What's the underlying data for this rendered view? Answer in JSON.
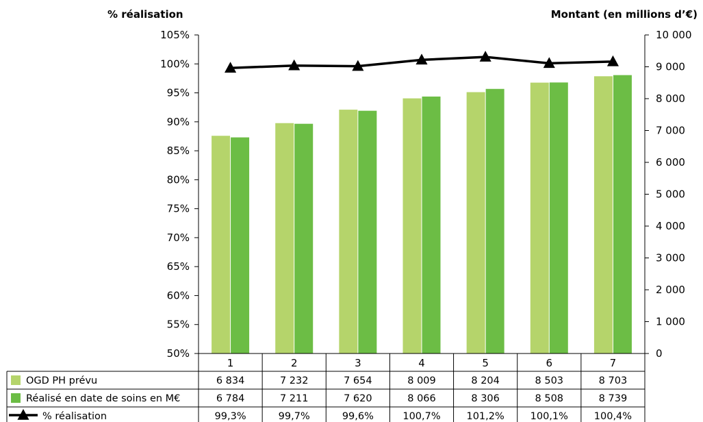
{
  "colors": {
    "ogd": "#b5d46b",
    "realise": "#6cbd45",
    "line": "#000000",
    "grid": "#000000"
  },
  "chart_data": {
    "type": "bar",
    "title": "",
    "ylabel_left": "% réalisation",
    "ylabel_right": "Montant (en millions d’€)",
    "left_axis": {
      "min": 0.5,
      "max": 1.05,
      "step": 0.05,
      "tick_labels": [
        "50%",
        "55%",
        "60%",
        "65%",
        "70%",
        "75%",
        "80%",
        "85%",
        "90%",
        "95%",
        "100%",
        "105%"
      ]
    },
    "right_axis": {
      "min": 0,
      "max": 10000,
      "step": 1000,
      "tick_labels": [
        "0",
        "1 000",
        "2 000",
        "3 000",
        "4 000",
        "5 000",
        "6 000",
        "7 000",
        "8 000",
        "9 000",
        "10 000"
      ]
    },
    "categories": [
      "1",
      "2",
      "3",
      "4",
      "5",
      "6",
      "7"
    ],
    "series": [
      {
        "name": "OGD PH prévu",
        "type": "bar",
        "axis": "right",
        "color_key": "ogd",
        "values": [
          6834,
          7232,
          7654,
          8009,
          8204,
          8503,
          8703
        ],
        "labels": [
          "6 834",
          "7 232",
          "7 654",
          "8 009",
          "8 204",
          "8 503",
          "8 703"
        ]
      },
      {
        "name": "Réalisé en date de soins en M€",
        "type": "bar",
        "axis": "right",
        "color_key": "realise",
        "values": [
          6784,
          7211,
          7620,
          8066,
          8306,
          8508,
          8739
        ],
        "labels": [
          "6 784",
          "7 211",
          "7 620",
          "8 066",
          "8 306",
          "8 508",
          "8 739"
        ]
      },
      {
        "name": "% réalisation",
        "type": "line",
        "axis": "left",
        "color_key": "line",
        "marker": "triangle",
        "values": [
          0.993,
          0.997,
          0.996,
          1.007,
          1.012,
          1.001,
          1.004
        ],
        "labels": [
          "99,3%",
          "99,7%",
          "99,6%",
          "100,7%",
          "101,2%",
          "100,1%",
          "100,4%"
        ]
      }
    ],
    "legend_placement": "data-table-below",
    "grid": false
  }
}
